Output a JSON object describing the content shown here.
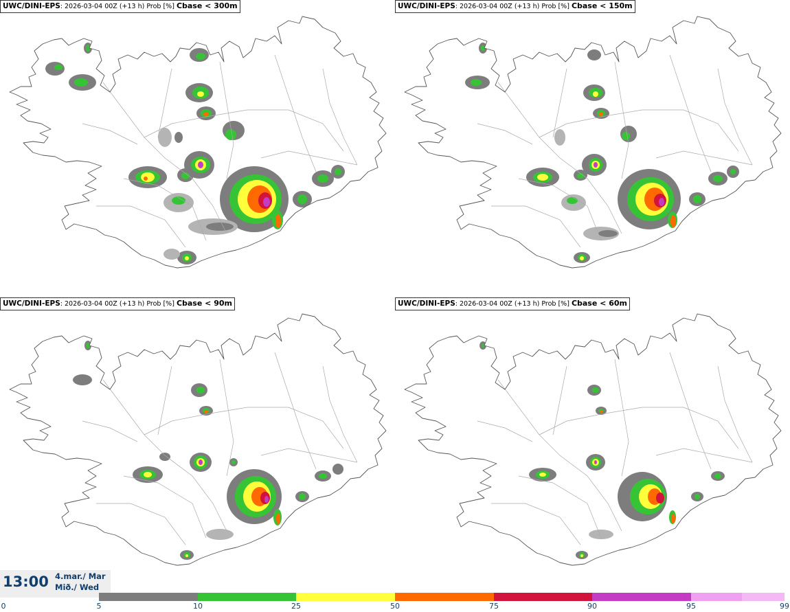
{
  "panels": [
    {
      "model": "UWC/DINI-EPS",
      "run": ": 2026-03-04 00Z (+13 h) Prob [%] ",
      "threshold": "Cbase < 300m"
    },
    {
      "model": "UWC/DINI-EPS",
      "run": ": 2026-03-04 00Z (+13 h) Prob [%] ",
      "threshold": "Cbase < 150m"
    },
    {
      "model": "UWC/DINI-EPS",
      "run": ": 2026-03-04 00Z (+13 h) Prob [%] ",
      "threshold": "Cbase < 90m"
    },
    {
      "model": "UWC/DINI-EPS",
      "run": ": 2026-03-04 00Z (+13 h) Prob [%] ",
      "threshold": "Cbase < 60m"
    }
  ],
  "time": {
    "clock": "13:00",
    "date": "4.mar./ Mar",
    "weekday": "Mið./ Wed"
  },
  "legend": {
    "ticks": [
      "0",
      "5",
      "10",
      "25",
      "50",
      "75",
      "90",
      "95",
      "99"
    ],
    "colors": [
      "#ffffff",
      "#b4b4b4",
      "#7d7d7d",
      "#36c436",
      "#ffff3c",
      "#ff6a00",
      "#d2143c",
      "#c43cc4",
      "#f0a0f0"
    ]
  }
}
